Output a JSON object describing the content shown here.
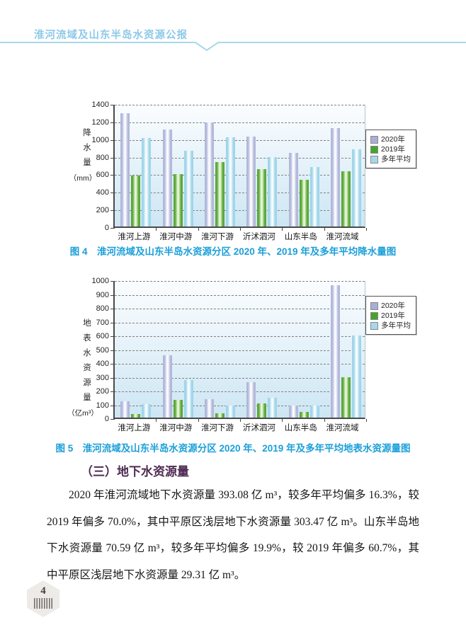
{
  "page": {
    "header": {
      "title": "淮河流域及山东半岛水资源公报"
    },
    "page_number": "4"
  },
  "colors": {
    "header_blue": "#8ec9e8",
    "caption_blue": "#1b9fd9",
    "heading_purple": "#4e2a52"
  },
  "chart_style": {
    "series": [
      {
        "name": "2020年",
        "legend": "#a9aed6",
        "edge": "#b2b8da",
        "mid": "#fbfcff"
      },
      {
        "name": "2019年",
        "legend": "#44a52c",
        "edge": "#5aa938",
        "mid": "#eaf6da"
      },
      {
        "name": "多年平均",
        "legend": "#a6d8ec",
        "edge": "#9fd5ea",
        "mid": "#f8fcfe"
      }
    ]
  },
  "chart_data": [
    {
      "type": "bar",
      "title": "淮河流域及山东半岛水资源分区2020年、2019年及多年平均降水量",
      "ylabel": "降水量",
      "ylabel_unit": "（mm）",
      "ylim": [
        0,
        1400
      ],
      "ytick_step": 200,
      "grid": true,
      "legend_position": "right",
      "categories": [
        "淮河上游",
        "淮河中游",
        "淮河下游",
        "沂沭泗河",
        "山东半岛",
        "淮河流域"
      ],
      "series": [
        {
          "name": "2020年",
          "values": [
            1290,
            1105,
            1180,
            1020,
            835,
            1115
          ]
        },
        {
          "name": "2019年",
          "values": [
            580,
            595,
            735,
            655,
            530,
            625
          ]
        },
        {
          "name": "多年平均",
          "values": [
            1005,
            860,
            1010,
            785,
            680,
            880
          ]
        }
      ]
    },
    {
      "type": "bar",
      "title": "淮河流域及山东半岛水资源分区2020年、2019年及多年平均地表水资源量",
      "ylabel": "地表水资源量",
      "ylabel_unit": "（亿m³）",
      "ylim": [
        0,
        1000
      ],
      "ytick_step": 100,
      "grid": true,
      "legend_position": "right",
      "categories": [
        "淮河上游",
        "淮河中游",
        "淮河下游",
        "沂沭泗河",
        "山东半岛",
        "淮河流域"
      ],
      "series": [
        {
          "name": "2020年",
          "values": [
            120,
            450,
            135,
            255,
            85,
            960
          ]
        },
        {
          "name": "2019年",
          "values": [
            25,
            130,
            30,
            105,
            40,
            290
          ]
        },
        {
          "name": "多年平均",
          "values": [
            100,
            270,
            85,
            145,
            85,
            595
          ]
        }
      ]
    }
  ],
  "captions": {
    "fig4": "图 4　淮河流域及山东半岛水资源分区 2020 年、2019 年及多年平均降水量图",
    "fig5": "图 5　淮河流域及山东半岛水资源分区 2020 年、2019 年及多年平均地表水资源量图"
  },
  "section": {
    "heading": "（三）地下水资源量",
    "paragraph": "2020 年淮河流域地下水资源量 393.08 亿 m³，较多年平均偏多 16.3%，较 2019 年偏多 70.0%，其中平原区浅层地下水资源量 303.47 亿 m³。山东半岛地下水资源量 70.59 亿 m³，较多年平均偏多 19.9%，较 2019 年偏多 60.7%，其中平原区浅层地下水资源量 29.31 亿 m³。"
  }
}
